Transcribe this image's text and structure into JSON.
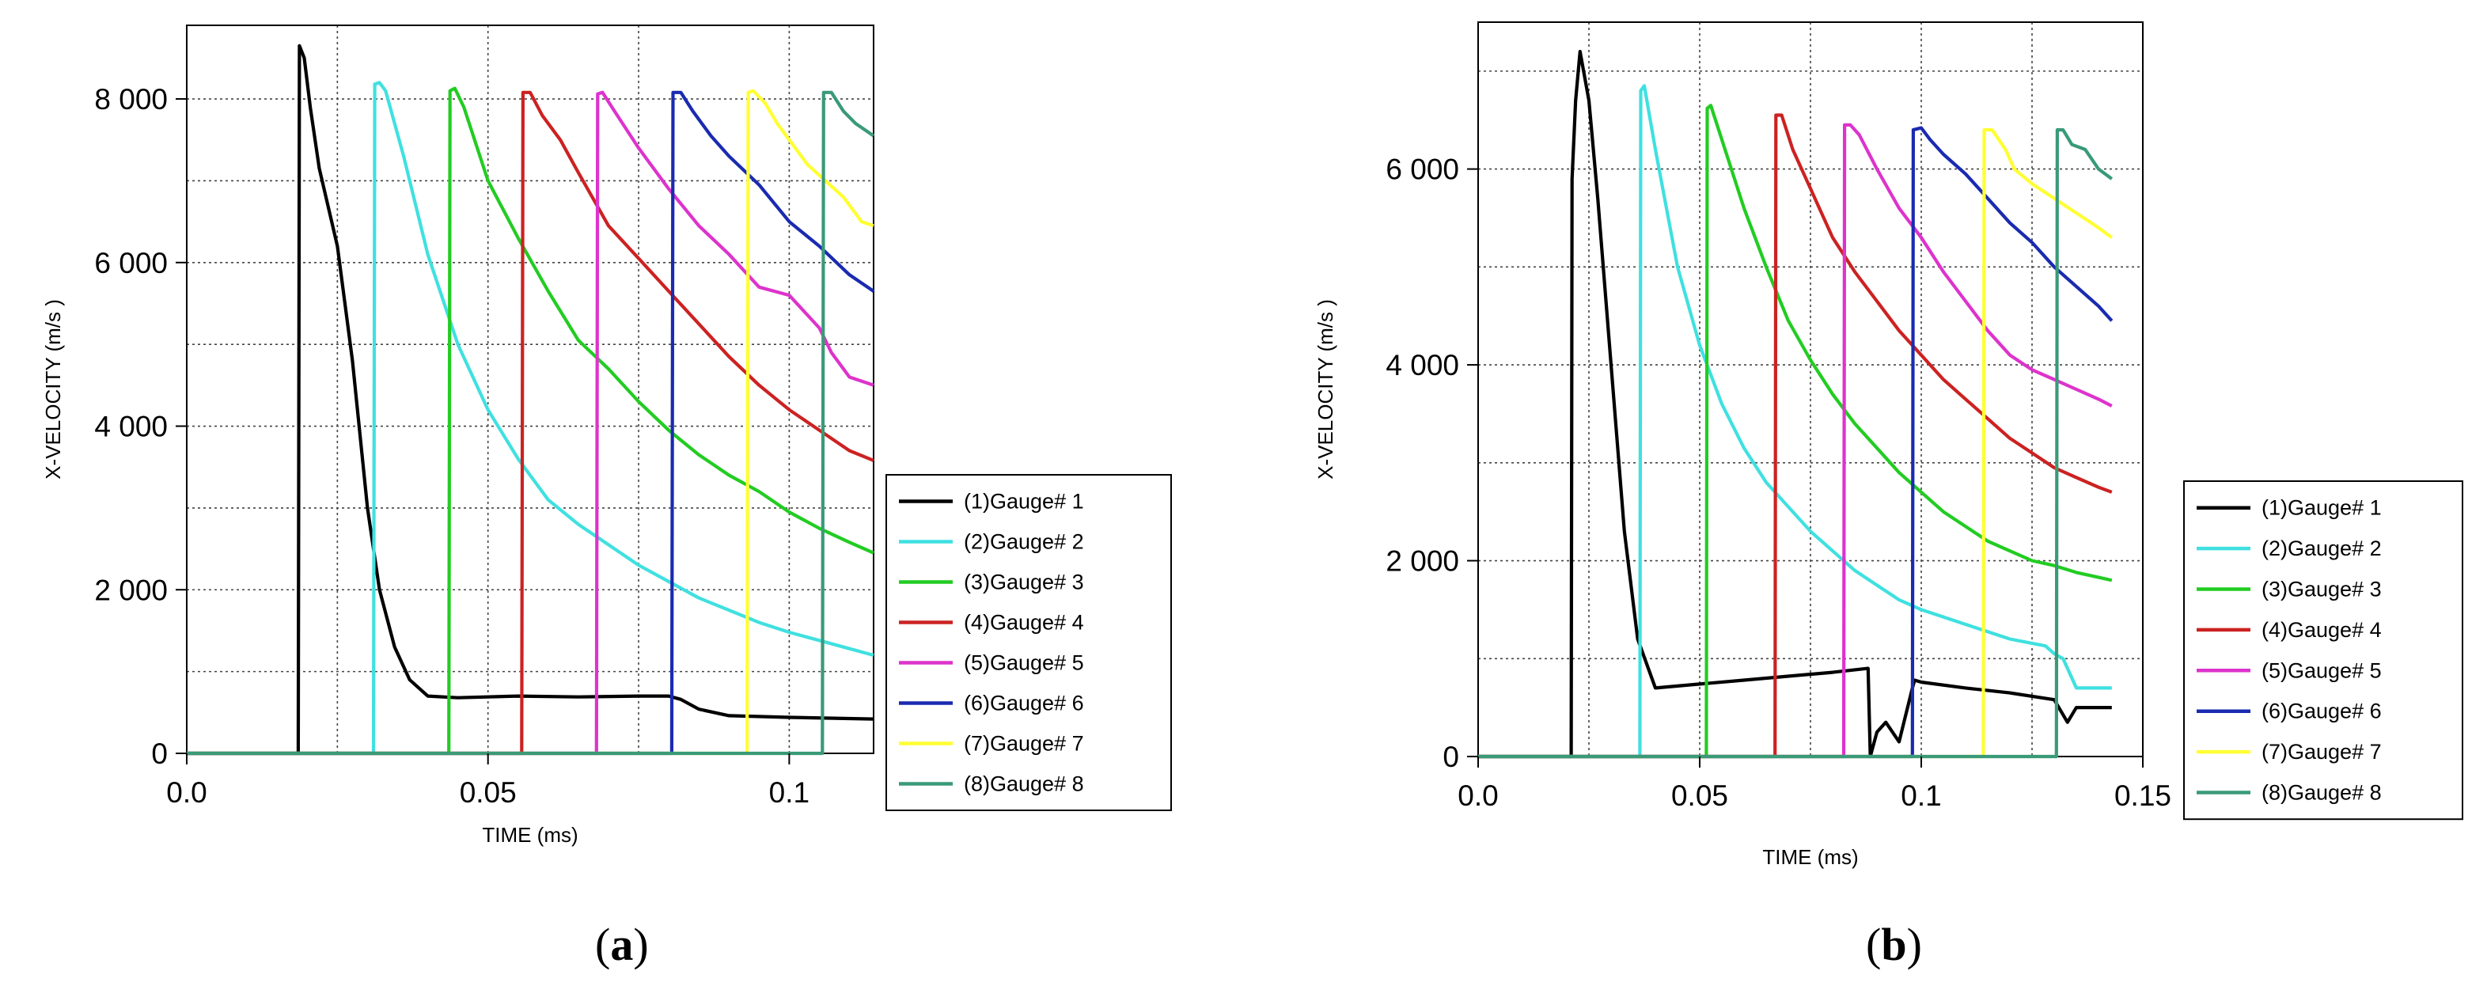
{
  "chart_data": [
    {
      "type": "line",
      "panel_label": "a",
      "xlabel": "TIME (ms)",
      "ylabel": "X-VELOCITY (m/s )",
      "xlim": [
        -0.0,
        0.114
      ],
      "ylim": [
        0,
        8900
      ],
      "xticks": [
        0.0,
        0.05,
        0.1
      ],
      "xtick_labels": [
        "0.0",
        "0.05",
        "0.1"
      ],
      "yticks": [
        0,
        2000,
        4000,
        6000,
        8000
      ],
      "ytick_labels": [
        "0",
        "2 000",
        "4 000",
        "6 000",
        "8 000"
      ],
      "grid": true,
      "legend_position": "right",
      "series": [
        {
          "name": "(1)Gauge#  1",
          "color": "#000000",
          "x": [
            0,
            0.0185,
            0.0187,
            0.0195,
            0.0205,
            0.022,
            0.025,
            0.0275,
            0.03,
            0.032,
            0.0345,
            0.037,
            0.04,
            0.045,
            0.055,
            0.065,
            0.075,
            0.08,
            0.082,
            0.085,
            0.09,
            0.1,
            0.114
          ],
          "y": [
            0,
            0,
            8650,
            8500,
            7900,
            7150,
            6200,
            4800,
            3000,
            2000,
            1300,
            900,
            700,
            680,
            700,
            690,
            700,
            700,
            660,
            540,
            460,
            440,
            420
          ]
        },
        {
          "name": "(2)Gauge#  2",
          "color": "#40e0e0",
          "x": [
            0,
            0.031,
            0.0312,
            0.032,
            0.033,
            0.036,
            0.04,
            0.045,
            0.05,
            0.055,
            0.06,
            0.065,
            0.07,
            0.075,
            0.08,
            0.085,
            0.09,
            0.095,
            0.1,
            0.105,
            0.11,
            0.114
          ],
          "y": [
            0,
            0,
            8180,
            8200,
            8100,
            7300,
            6100,
            5000,
            4200,
            3600,
            3100,
            2800,
            2550,
            2300,
            2100,
            1900,
            1750,
            1600,
            1480,
            1380,
            1280,
            1200
          ]
        },
        {
          "name": "(3)Gauge#  3",
          "color": "#22cc22",
          "x": [
            0,
            0.0435,
            0.0437,
            0.0445,
            0.046,
            0.05,
            0.055,
            0.06,
            0.065,
            0.07,
            0.075,
            0.08,
            0.085,
            0.09,
            0.095,
            0.1,
            0.105,
            0.11,
            0.114
          ],
          "y": [
            0,
            0,
            8100,
            8130,
            7900,
            7000,
            6300,
            5650,
            5050,
            4700,
            4300,
            3950,
            3650,
            3400,
            3200,
            2950,
            2750,
            2580,
            2450
          ]
        },
        {
          "name": "(4)Gauge#  4",
          "color": "#cc2222",
          "x": [
            0,
            0.0556,
            0.0558,
            0.057,
            0.059,
            0.062,
            0.065,
            0.07,
            0.075,
            0.08,
            0.085,
            0.09,
            0.095,
            0.1,
            0.105,
            0.11,
            0.114
          ],
          "y": [
            0,
            0,
            8080,
            8080,
            7800,
            7500,
            7100,
            6450,
            6050,
            5650,
            5250,
            4850,
            4500,
            4200,
            3950,
            3700,
            3580
          ]
        },
        {
          "name": "(5)Gauge#  5",
          "color": "#dd33cc",
          "x": [
            0,
            0.068,
            0.0682,
            0.069,
            0.071,
            0.075,
            0.08,
            0.085,
            0.09,
            0.095,
            0.1,
            0.105,
            0.107,
            0.11,
            0.114
          ],
          "y": [
            0,
            0,
            8060,
            8080,
            7850,
            7400,
            6900,
            6450,
            6100,
            5700,
            5600,
            5200,
            4900,
            4600,
            4500
          ]
        },
        {
          "name": "(6)Gauge#  6",
          "color": "#1a2bb0",
          "x": [
            0,
            0.0805,
            0.0807,
            0.082,
            0.084,
            0.087,
            0.09,
            0.095,
            0.1,
            0.105,
            0.11,
            0.114
          ],
          "y": [
            0,
            0,
            8080,
            8080,
            7850,
            7550,
            7300,
            6950,
            6500,
            6200,
            5850,
            5650
          ]
        },
        {
          "name": "(7)Gauge#  7",
          "color": "#ffff33",
          "x": [
            0,
            0.093,
            0.0932,
            0.094,
            0.096,
            0.098,
            0.1,
            0.103,
            0.106,
            0.109,
            0.112,
            0.114
          ],
          "y": [
            0,
            0,
            8080,
            8100,
            7950,
            7700,
            7500,
            7200,
            7000,
            6800,
            6500,
            6450
          ]
        },
        {
          "name": "(8)Gauge#  8",
          "color": "#3a9a78",
          "x": [
            0,
            0.1055,
            0.1057,
            0.107,
            0.109,
            0.111,
            0.114
          ],
          "y": [
            0,
            0,
            8080,
            8080,
            7850,
            7700,
            7550
          ]
        }
      ]
    },
    {
      "type": "line",
      "panel_label": "b",
      "xlabel": "TIME (ms)",
      "ylabel": "X-VELOCITY (m/s )",
      "xlim": [
        -0.0,
        0.15
      ],
      "ylim": [
        0,
        7500
      ],
      "xticks": [
        0.0,
        0.05,
        0.1,
        0.15
      ],
      "xtick_labels": [
        "0.0",
        "0.05",
        "0.1",
        "0.15"
      ],
      "yticks": [
        0,
        2000,
        4000,
        6000
      ],
      "ytick_labels": [
        "0",
        "2 000",
        "4 000",
        "6 000"
      ],
      "grid": true,
      "legend_position": "right",
      "series": [
        {
          "name": "(1)Gauge#  1",
          "color": "#000000",
          "x": [
            0,
            0.021,
            0.0212,
            0.022,
            0.023,
            0.025,
            0.027,
            0.03,
            0.033,
            0.036,
            0.04,
            0.045,
            0.05,
            0.06,
            0.07,
            0.08,
            0.088,
            0.0885,
            0.09,
            0.092,
            0.095,
            0.098,
            0.0985,
            0.1,
            0.11,
            0.12,
            0.13,
            0.133,
            0.135,
            0.143
          ],
          "y": [
            0,
            0,
            5900,
            6700,
            7200,
            6700,
            5700,
            4000,
            2300,
            1200,
            700,
            720,
            740,
            780,
            820,
            860,
            900,
            0,
            250,
            350,
            150,
            700,
            780,
            760,
            700,
            650,
            580,
            350,
            500,
            500
          ]
        },
        {
          "name": "(2)Gauge#  2",
          "color": "#40e0e0",
          "x": [
            0,
            0.0365,
            0.0367,
            0.0375,
            0.04,
            0.045,
            0.05,
            0.055,
            0.06,
            0.065,
            0.07,
            0.075,
            0.08,
            0.085,
            0.09,
            0.095,
            0.1,
            0.11,
            0.12,
            0.128,
            0.13,
            0.132,
            0.135,
            0.143
          ],
          "y": [
            0,
            0,
            6800,
            6850,
            6200,
            5000,
            4200,
            3600,
            3150,
            2800,
            2550,
            2300,
            2100,
            1900,
            1750,
            1600,
            1500,
            1350,
            1200,
            1130,
            1050,
            1000,
            700,
            700
          ]
        },
        {
          "name": "(3)Gauge#  3",
          "color": "#22cc22",
          "x": [
            0,
            0.0515,
            0.0517,
            0.0525,
            0.055,
            0.06,
            0.065,
            0.07,
            0.075,
            0.08,
            0.085,
            0.09,
            0.095,
            0.1,
            0.105,
            0.11,
            0.115,
            0.12,
            0.125,
            0.13,
            0.135,
            0.14,
            0.143
          ],
          "y": [
            0,
            0,
            6620,
            6650,
            6300,
            5600,
            5000,
            4450,
            4050,
            3700,
            3400,
            3150,
            2900,
            2700,
            2500,
            2350,
            2200,
            2100,
            2000,
            1950,
            1880,
            1830,
            1800
          ]
        },
        {
          "name": "(4)Gauge#  4",
          "color": "#cc2222",
          "x": [
            0,
            0.067,
            0.0672,
            0.0685,
            0.071,
            0.075,
            0.08,
            0.085,
            0.09,
            0.095,
            0.1,
            0.105,
            0.11,
            0.115,
            0.12,
            0.125,
            0.13,
            0.135,
            0.14,
            0.143
          ],
          "y": [
            0,
            0,
            6550,
            6550,
            6200,
            5800,
            5300,
            4950,
            4650,
            4350,
            4100,
            3850,
            3650,
            3450,
            3250,
            3100,
            2950,
            2850,
            2750,
            2700
          ]
        },
        {
          "name": "(5)Gauge#  5",
          "color": "#dd33cc",
          "x": [
            0,
            0.0825,
            0.0827,
            0.084,
            0.086,
            0.09,
            0.095,
            0.1,
            0.105,
            0.11,
            0.115,
            0.12,
            0.125,
            0.13,
            0.135,
            0.14,
            0.143
          ],
          "y": [
            0,
            0,
            6450,
            6450,
            6350,
            6000,
            5600,
            5300,
            4950,
            4650,
            4350,
            4100,
            3950,
            3850,
            3750,
            3650,
            3580
          ]
        },
        {
          "name": "(6)Gauge#  6",
          "color": "#1a2bb0",
          "x": [
            0,
            0.098,
            0.0982,
            0.1,
            0.102,
            0.105,
            0.11,
            0.115,
            0.12,
            0.125,
            0.13,
            0.135,
            0.14,
            0.143
          ],
          "y": [
            0,
            0,
            6400,
            6420,
            6300,
            6150,
            5950,
            5700,
            5450,
            5250,
            5000,
            4800,
            4600,
            4450
          ]
        },
        {
          "name": "(7)Gauge#  7",
          "color": "#ffff33",
          "x": [
            0,
            0.114,
            0.1142,
            0.116,
            0.119,
            0.121,
            0.125,
            0.13,
            0.135,
            0.14,
            0.143
          ],
          "y": [
            0,
            0,
            6400,
            6400,
            6200,
            6000,
            5850,
            5700,
            5550,
            5400,
            5300
          ]
        },
        {
          "name": "(8)Gauge#  8",
          "color": "#3a9a78",
          "x": [
            0,
            0.1305,
            0.1307,
            0.132,
            0.134,
            0.137,
            0.14,
            0.143
          ],
          "y": [
            0,
            0,
            6400,
            6400,
            6250,
            6200,
            6000,
            5900
          ]
        }
      ]
    }
  ]
}
